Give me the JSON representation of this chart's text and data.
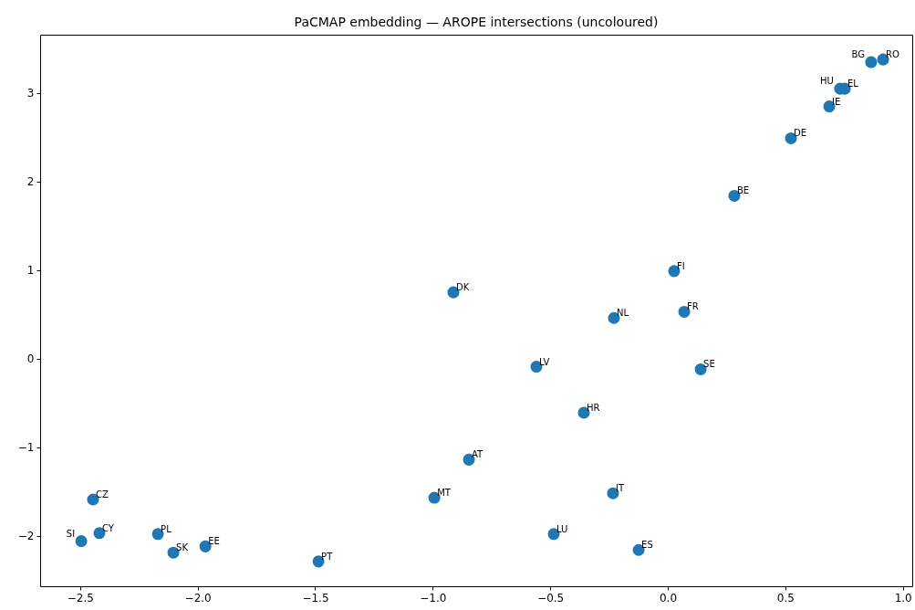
{
  "chart_data": {
    "type": "scatter",
    "title": "PaCMAP embedding — AROPE intersections (uncoloured)",
    "x": [
      0.865,
      0.916,
      0.733,
      0.753,
      0.687,
      0.524,
      0.283,
      0.027,
      0.07,
      -0.229,
      0.14,
      -0.912,
      -0.559,
      -0.357,
      -0.846,
      -0.233,
      -0.993,
      -0.485,
      -0.124,
      -1.486,
      -2.445,
      -2.418,
      -2.495,
      -2.169,
      -2.103,
      -1.967
    ],
    "series": [
      {
        "color": "#1f77b4",
        "values": [
          3.35,
          3.38,
          3.05,
          3.05,
          2.85,
          2.49,
          1.84,
          0.99,
          0.53,
          0.46,
          -0.12,
          0.75,
          -0.09,
          -0.61,
          -1.14,
          -1.52,
          -1.57,
          -1.98,
          -2.16,
          -2.29,
          -1.59,
          -1.97,
          -2.06,
          -1.98,
          -2.19,
          -2.12
        ]
      }
    ],
    "annotations": [
      {
        "text": "BG",
        "x": 0.865,
        "y": 3.35
      },
      {
        "text": "RO",
        "x": 0.916,
        "y": 3.38
      },
      {
        "text": "HU",
        "x": 0.733,
        "y": 3.05
      },
      {
        "text": "EL",
        "x": 0.753,
        "y": 3.05
      },
      {
        "text": "IE",
        "x": 0.687,
        "y": 2.85
      },
      {
        "text": "DE",
        "x": 0.524,
        "y": 2.49
      },
      {
        "text": "BE",
        "x": 0.283,
        "y": 1.84
      },
      {
        "text": "FI",
        "x": 0.027,
        "y": 0.99
      },
      {
        "text": "FR",
        "x": 0.07,
        "y": 0.53
      },
      {
        "text": "NL",
        "x": -0.229,
        "y": 0.46
      },
      {
        "text": "SE",
        "x": 0.14,
        "y": -0.12
      },
      {
        "text": "DK",
        "x": -0.912,
        "y": 0.75
      },
      {
        "text": "LV",
        "x": -0.559,
        "y": -0.09
      },
      {
        "text": "HR",
        "x": -0.357,
        "y": -0.61
      },
      {
        "text": "AT",
        "x": -0.846,
        "y": -1.14
      },
      {
        "text": "IT",
        "x": -0.233,
        "y": -1.52
      },
      {
        "text": "MT",
        "x": -0.993,
        "y": -1.57
      },
      {
        "text": "LU",
        "x": -0.485,
        "y": -1.98
      },
      {
        "text": "ES",
        "x": -0.124,
        "y": -2.16
      },
      {
        "text": "PT",
        "x": -1.486,
        "y": -2.29
      },
      {
        "text": "CZ",
        "x": -2.445,
        "y": -1.59
      },
      {
        "text": "CY",
        "x": -2.418,
        "y": -1.97
      },
      {
        "text": "SI",
        "x": -2.495,
        "y": -2.06
      },
      {
        "text": "PL",
        "x": -2.169,
        "y": -1.98
      },
      {
        "text": "SK",
        "x": -2.103,
        "y": -2.19
      },
      {
        "text": "EE",
        "x": -1.967,
        "y": -2.12
      }
    ],
    "marker": "circle",
    "xlim": [
      -2.67,
      1.04
    ],
    "ylim": [
      -2.57,
      3.66
    ],
    "xticks": [
      {
        "value": -2.5,
        "label": "−2.5"
      },
      {
        "value": -2.0,
        "label": "−2.0"
      },
      {
        "value": -1.5,
        "label": "−1.5"
      },
      {
        "value": -1.0,
        "label": "−1.0"
      },
      {
        "value": -0.5,
        "label": "−0.5"
      },
      {
        "value": 0.0,
        "label": "0.0"
      },
      {
        "value": 0.5,
        "label": "0.5"
      },
      {
        "value": 1.0,
        "label": "1.0"
      }
    ],
    "yticks": [
      {
        "value": -2,
        "label": "−2"
      },
      {
        "value": -1,
        "label": "−1"
      },
      0,
      1,
      2,
      3
    ]
  }
}
